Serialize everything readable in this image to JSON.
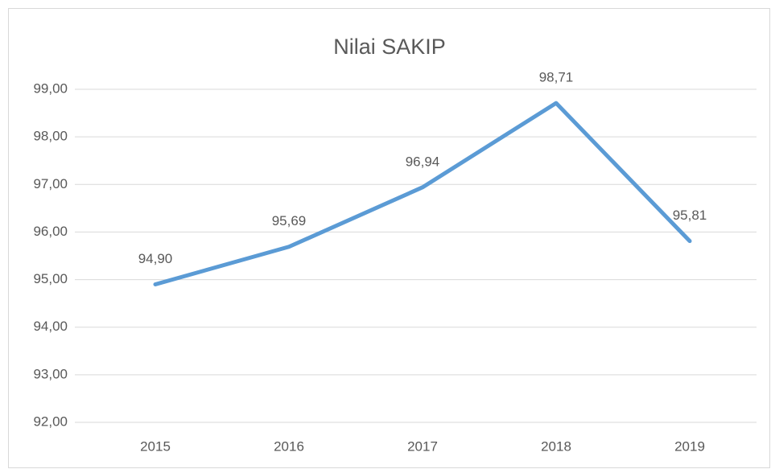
{
  "chart_data": {
    "type": "line",
    "title": "Nilai SAKIP",
    "categories": [
      "2015",
      "2016",
      "2017",
      "2018",
      "2019"
    ],
    "series": [
      {
        "name": "Nilai SAKIP",
        "color": "#5b9bd5",
        "values": [
          94.9,
          95.69,
          96.94,
          98.71,
          95.81
        ],
        "value_labels": [
          "94,90",
          "95,69",
          "96,94",
          "98,71",
          "95,81"
        ]
      }
    ],
    "ylim": [
      92,
      99
    ],
    "yticks": [
      {
        "value": 92,
        "label": "92,00"
      },
      {
        "value": 93,
        "label": "93,00"
      },
      {
        "value": 94,
        "label": "94,00"
      },
      {
        "value": 95,
        "label": "95,00"
      },
      {
        "value": 96,
        "label": "96,00"
      },
      {
        "value": 97,
        "label": "97,00"
      },
      {
        "value": 98,
        "label": "98,00"
      },
      {
        "value": 99,
        "label": "99,00"
      }
    ],
    "grid": true
  }
}
